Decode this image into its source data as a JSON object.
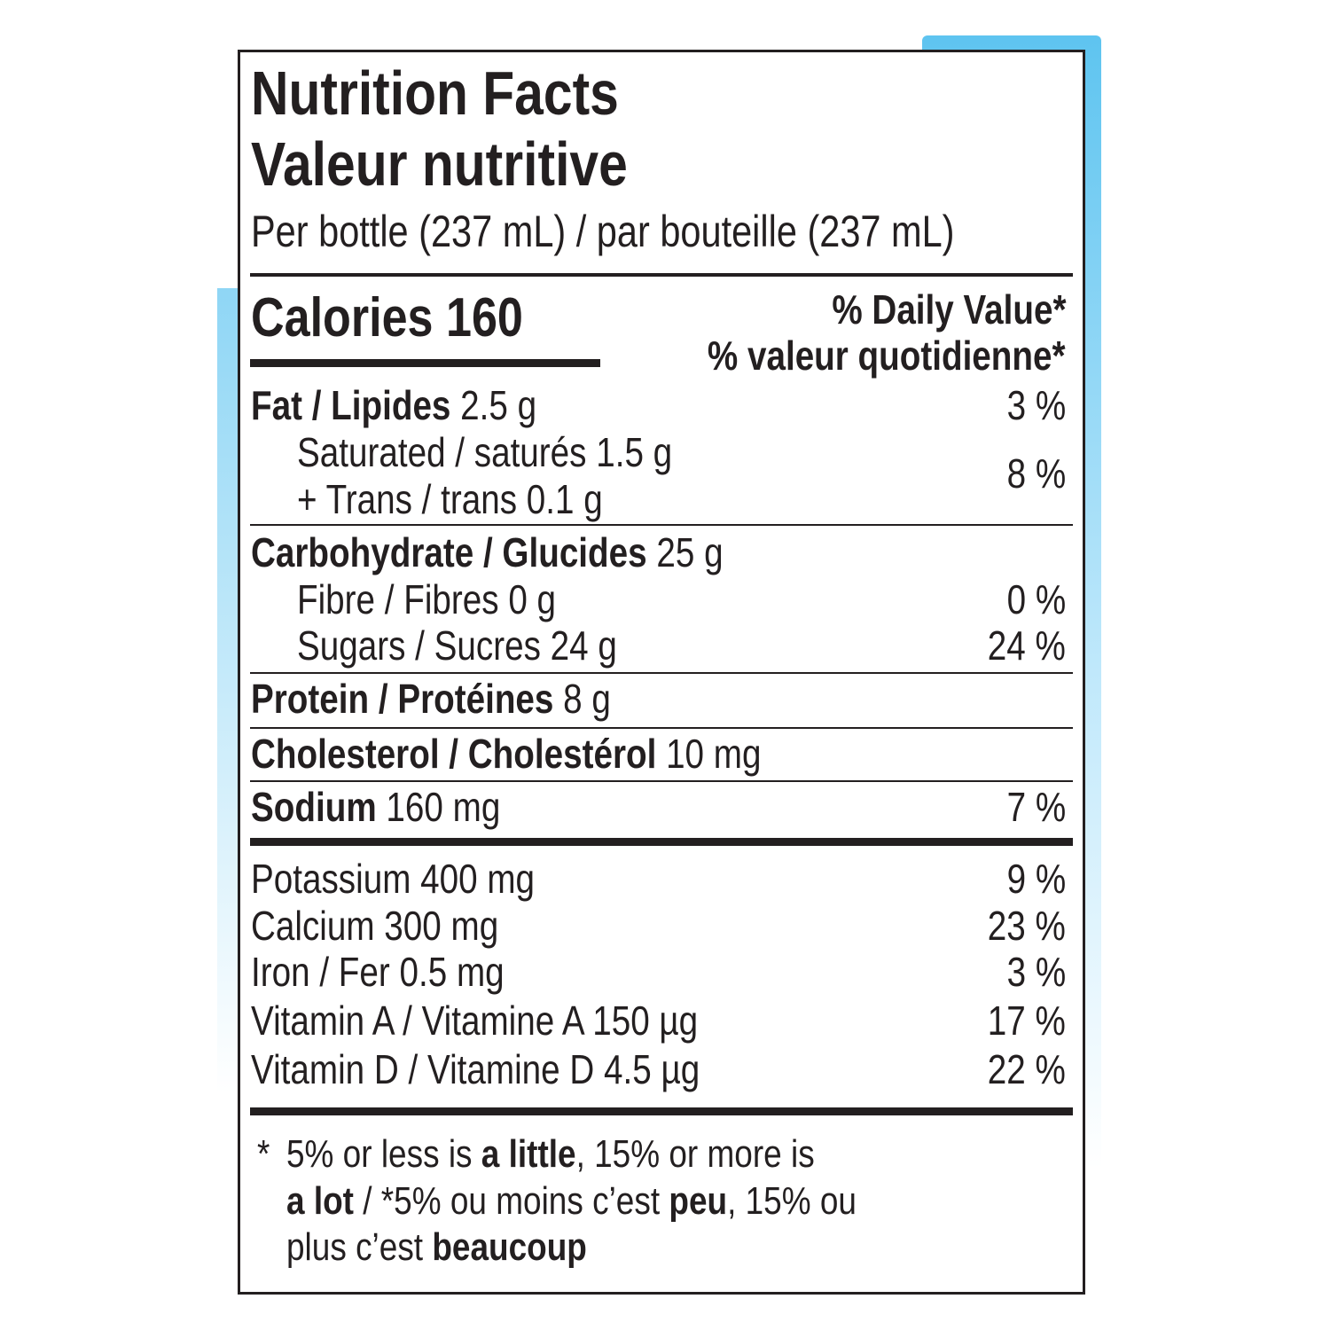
{
  "title": "Nutrition Facts",
  "title_fr": "Valeur nutritive",
  "serving": "Per bottle (237 mL) / par bouteille (237 mL)",
  "calories": {
    "label": "Calories",
    "value": 160
  },
  "dv_header": "% Daily Value*",
  "dv_header_fr": "% valeur quotidienne*",
  "rows": [
    {
      "label": "Fat / Lipides",
      "amount": "2.5 g",
      "dv": "3 %"
    },
    {
      "label": "Saturated / saturés",
      "amount": "1.5 g",
      "dv": "8 %"
    },
    {
      "label": "+ Trans / trans",
      "amount": "0.1 g"
    },
    {
      "label": "Carbohydrate / Glucides",
      "amount": "25 g"
    },
    {
      "label": "Fibre / Fibres",
      "amount": "0 g",
      "dv": "0 %"
    },
    {
      "label": "Sugars / Sucres",
      "amount": "24 g",
      "dv": "24 %"
    },
    {
      "label": "Protein / Protéines",
      "amount": "8 g"
    },
    {
      "label": "Cholesterol / Cholestérol",
      "amount": "10 mg"
    },
    {
      "label": "Sodium",
      "amount": "160 mg",
      "dv": "7 %"
    },
    {
      "label": "Potassium",
      "amount": "400 mg",
      "dv": "9 %"
    },
    {
      "label": "Calcium",
      "amount": "300 mg",
      "dv": "23 %"
    },
    {
      "label": "Iron / Fer",
      "amount": "0.5 mg",
      "dv": "3 %"
    },
    {
      "label": "Vitamin A / Vitamine A",
      "amount": "150 µg",
      "dv": "17 %"
    },
    {
      "label": "Vitamin D / Vitamine D",
      "amount": "4.5 µg",
      "dv": "22 %"
    }
  ],
  "footnote": [
    "*",
    "5% or less is ",
    "a little",
    ", 15% or more is",
    "a lot",
    " / *5% ou moins c’est ",
    "peu",
    ", 15% ou",
    "plus c’est ",
    "beaucoup"
  ]
}
